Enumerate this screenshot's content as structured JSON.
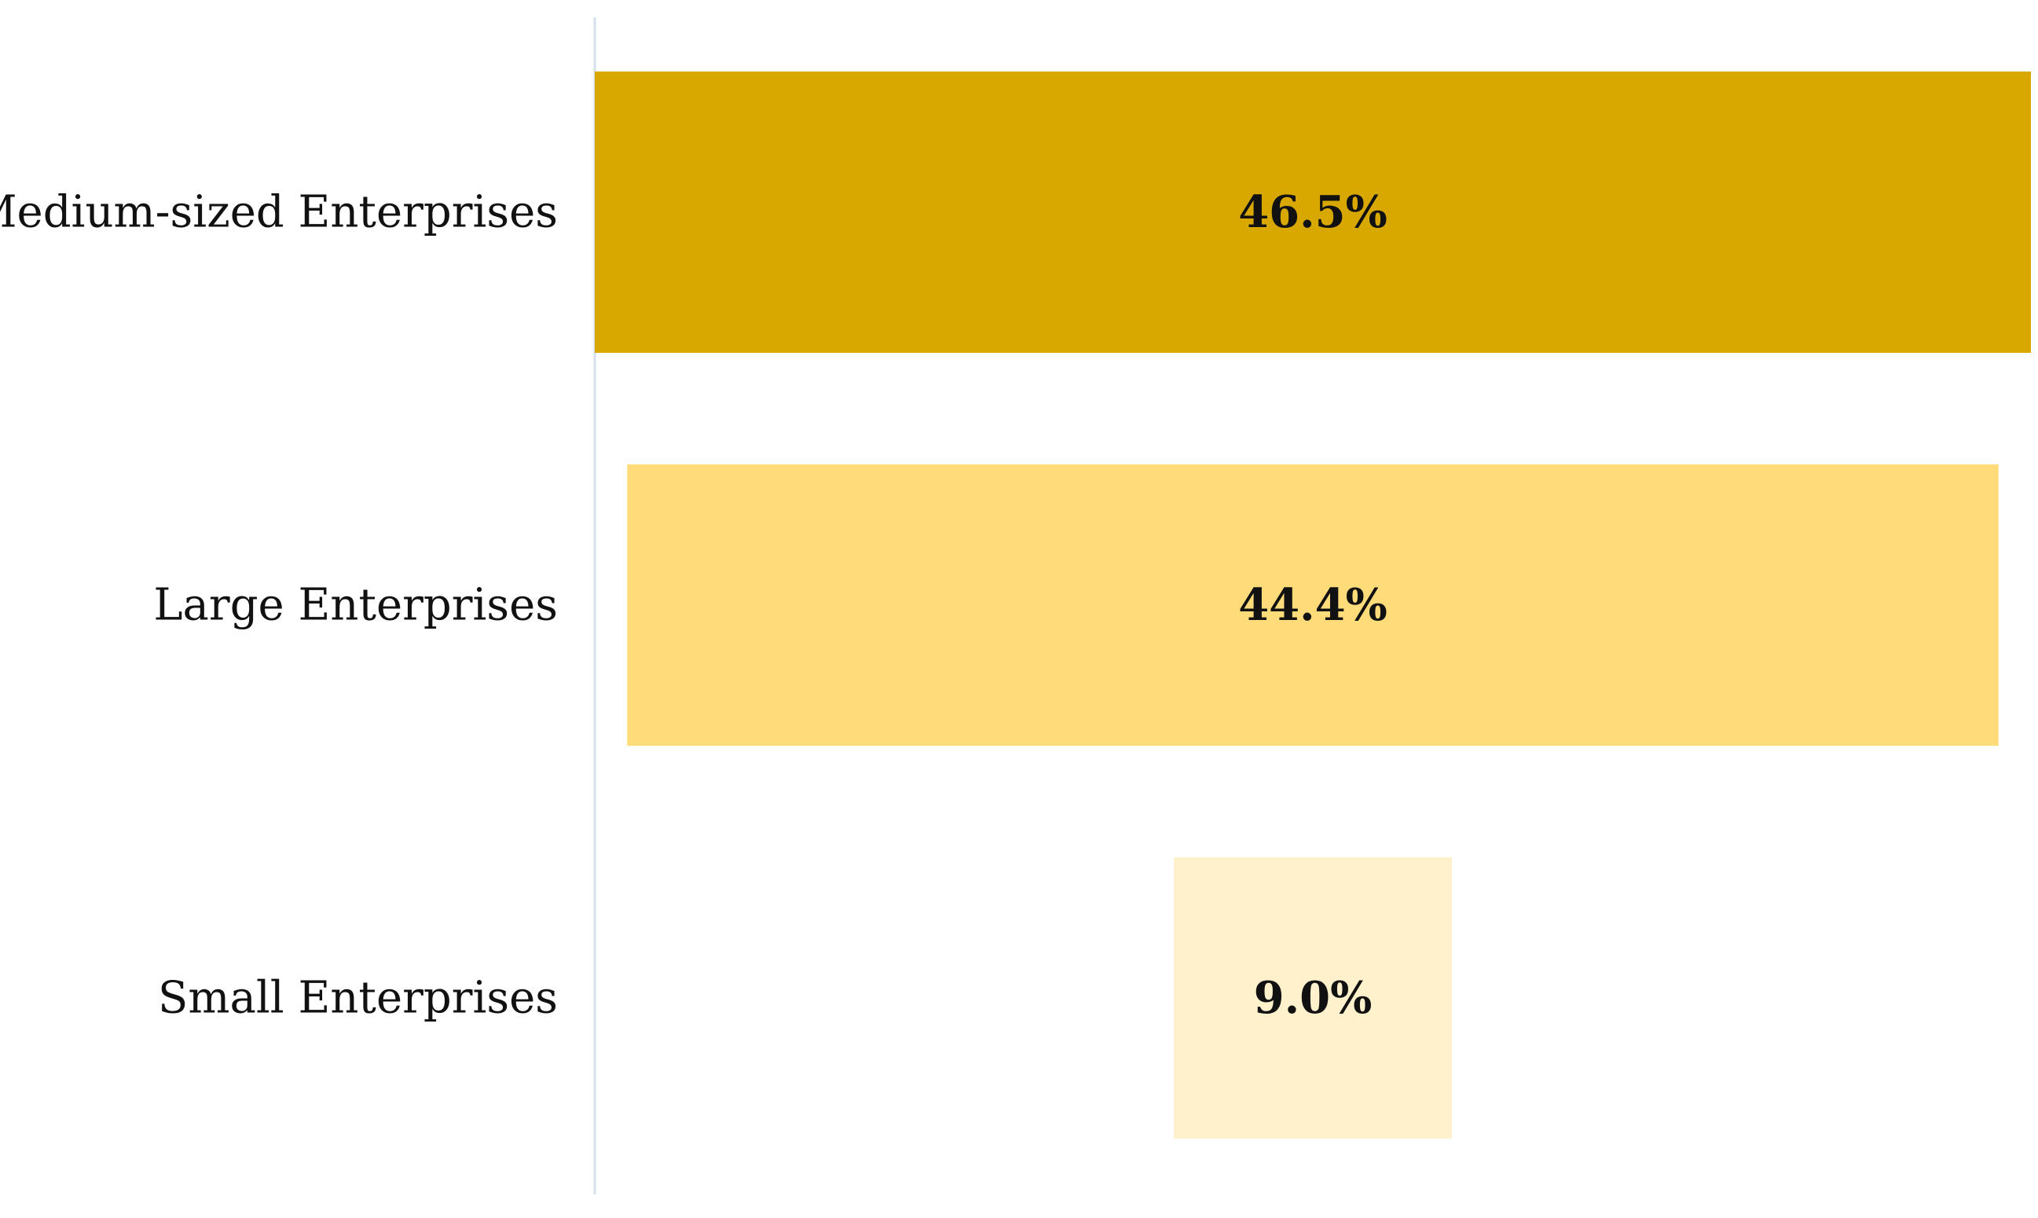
{
  "chart_data": {
    "type": "bar",
    "orientation": "horizontal",
    "layout": "funnel-centered",
    "title": "",
    "xlabel": "",
    "ylabel": "",
    "grid": false,
    "legend": "none",
    "categories": [
      "Medium-sized Enterprises",
      "Large Enterprises",
      "Small Enterprises"
    ],
    "values": [
      46.5,
      44.4,
      9.0
    ],
    "value_labels": [
      "46.5%",
      "44.4%",
      "9.0%"
    ],
    "colors": [
      "#D9A800",
      "#FFDB7A",
      "#FFF1CC"
    ],
    "axis_color": "#D6E0EC"
  }
}
